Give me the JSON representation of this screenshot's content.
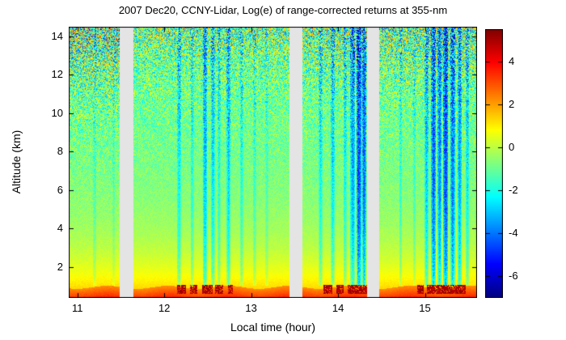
{
  "chart_data": {
    "type": "heatmap",
    "title": "2007 Dec20, CCNY-Lidar, Log(e) of range-corrected returns at 355-nm",
    "xlabel": "Local time (hour)",
    "ylabel": "Altitude (km)",
    "x_range": [
      10.9,
      15.6
    ],
    "y_range_km": [
      0.4,
      14.5
    ],
    "xticks": [
      11,
      12,
      13,
      14,
      15
    ],
    "yticks": [
      2,
      4,
      6,
      8,
      10,
      12,
      14
    ],
    "colorbar": {
      "colormap": "jet",
      "vmin": -7,
      "vmax": 5.5,
      "ticks": [
        4,
        2,
        0,
        -2,
        -4,
        -6
      ]
    },
    "panels_time_ranges": [
      [
        10.9,
        11.49
      ],
      [
        11.64,
        13.44
      ],
      [
        13.59,
        14.33
      ],
      [
        14.47,
        15.6
      ]
    ],
    "panel_noise_scale": [
      1.35,
      1.0,
      1.1,
      1.15
    ],
    "gap_color": "#e4e4e4",
    "profile": {
      "amplitude": 3.2,
      "decay_km": 2.6,
      "offset": -1.0
    },
    "noise": {
      "base_sigma": 0.12,
      "top_sigma": 3.3,
      "exponent": 2.4,
      "seed": 7
    },
    "boundary_layer": {
      "top_km": 0.95,
      "value": 2.2,
      "gradient": 2.2,
      "wiggle_amp": 0.08,
      "wiggle_freq": 9
    },
    "cloud_streaks": [
      {
        "t": 11.2,
        "w": 0.018,
        "s": 1.0
      },
      {
        "t": 11.42,
        "w": 0.015,
        "s": 0.8
      },
      {
        "t": 12.17,
        "w": 0.022,
        "s": 2.2
      },
      {
        "t": 12.32,
        "w": 0.018,
        "s": 1.6
      },
      {
        "t": 12.47,
        "w": 0.025,
        "s": 3.2
      },
      {
        "t": 12.56,
        "w": 0.02,
        "s": 2.6
      },
      {
        "t": 12.63,
        "w": 0.016,
        "s": 1.8
      },
      {
        "t": 12.74,
        "w": 0.022,
        "s": 2.8
      },
      {
        "t": 12.89,
        "w": 0.018,
        "s": 1.7
      },
      {
        "t": 13.04,
        "w": 0.016,
        "s": 1.3
      },
      {
        "t": 13.18,
        "w": 0.015,
        "s": 1.0
      },
      {
        "t": 13.8,
        "w": 0.02,
        "s": 2.0
      },
      {
        "t": 13.94,
        "w": 0.022,
        "s": 2.4
      },
      {
        "t": 14.08,
        "w": 0.02,
        "s": 2.0
      },
      {
        "t": 14.17,
        "w": 0.028,
        "s": 3.6
      },
      {
        "t": 14.24,
        "w": 0.03,
        "s": 5.2
      },
      {
        "t": 14.3,
        "w": 0.026,
        "s": 4.6
      },
      {
        "t": 14.72,
        "w": 0.018,
        "s": 1.4
      },
      {
        "t": 14.88,
        "w": 0.016,
        "s": 1.2
      },
      {
        "t": 15.02,
        "w": 0.022,
        "s": 3.0
      },
      {
        "t": 15.1,
        "w": 0.026,
        "s": 5.0
      },
      {
        "t": 15.17,
        "w": 0.024,
        "s": 4.2
      },
      {
        "t": 15.24,
        "w": 0.028,
        "s": 5.4
      },
      {
        "t": 15.32,
        "w": 0.026,
        "s": 4.6
      },
      {
        "t": 15.4,
        "w": 0.024,
        "s": 3.6
      },
      {
        "t": 15.49,
        "w": 0.02,
        "s": 2.4
      }
    ],
    "ground_blobs": [
      {
        "t": 12.2,
        "w": 0.05
      },
      {
        "t": 12.34,
        "w": 0.04
      },
      {
        "t": 12.5,
        "w": 0.06
      },
      {
        "t": 12.63,
        "w": 0.05
      },
      {
        "t": 12.76,
        "w": 0.03
      },
      {
        "t": 13.88,
        "w": 0.05
      },
      {
        "t": 14.02,
        "w": 0.04
      },
      {
        "t": 14.2,
        "w": 0.09
      },
      {
        "t": 14.31,
        "w": 0.04
      },
      {
        "t": 14.95,
        "w": 0.04
      },
      {
        "t": 15.1,
        "w": 0.08
      },
      {
        "t": 15.22,
        "w": 0.05
      },
      {
        "t": 15.32,
        "w": 0.07
      },
      {
        "t": 15.43,
        "w": 0.04
      }
    ]
  }
}
